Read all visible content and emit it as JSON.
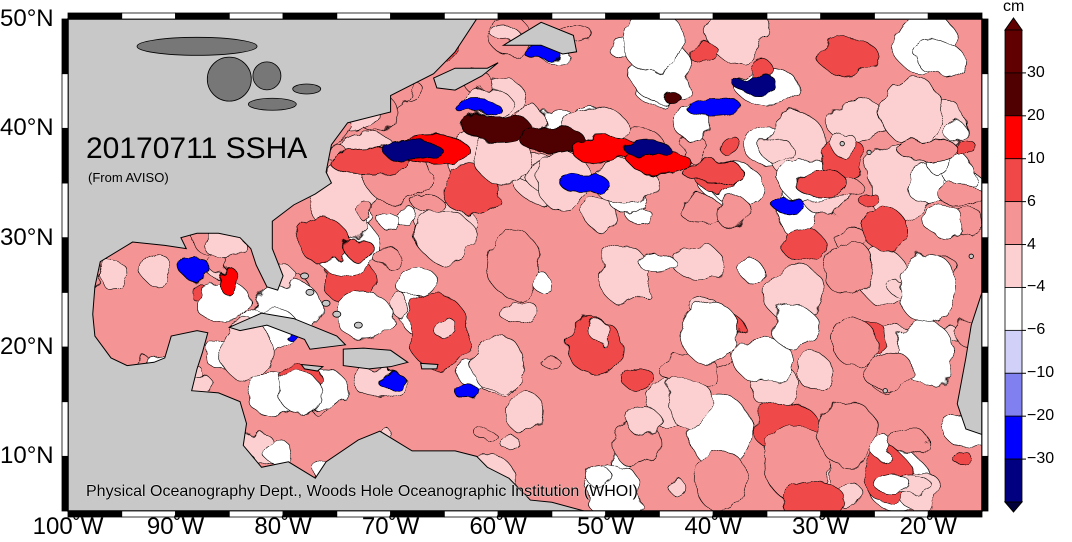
{
  "map": {
    "title": "20170711 SSHA",
    "subtitle": "(From AVISO)",
    "credit": "Physical Oceanography Dept., Woods Hole Oceanographic Institution (WHOI)",
    "extent": {
      "lon_min": -100,
      "lon_max": -15,
      "lat_min": 5,
      "lat_max": 50
    },
    "lat_ticks": [
      {
        "value": 50,
        "label": "50°N"
      },
      {
        "value": 40,
        "label": "40°N"
      },
      {
        "value": 30,
        "label": "30°N"
      },
      {
        "value": 20,
        "label": "20°N"
      },
      {
        "value": 10,
        "label": "10°N"
      }
    ],
    "lon_ticks": [
      {
        "value": -100,
        "label": "100˚W"
      },
      {
        "value": -90,
        "label": "90˚W"
      },
      {
        "value": -80,
        "label": "80˚W"
      },
      {
        "value": -70,
        "label": "70˚W"
      },
      {
        "value": -60,
        "label": "60˚W"
      },
      {
        "value": -50,
        "label": "50˚W"
      },
      {
        "value": -40,
        "label": "40˚W"
      },
      {
        "value": -30,
        "label": "30˚W"
      },
      {
        "value": -20,
        "label": "20˚W"
      }
    ],
    "land_color": "#c8c8c8",
    "lake_color": "#777777"
  },
  "colorbar": {
    "unit": "cm",
    "levels": [
      "30",
      "20",
      "10",
      "6",
      "4",
      "−4",
      "−6",
      "−10",
      "−20",
      "−30"
    ],
    "colors": [
      "#500000",
      "#ff0000",
      "#f04848",
      "#f49494",
      "#fcd0d0",
      "#ffffff",
      "#d0d0f8",
      "#8080f0",
      "#0000ff",
      "#000080",
      "#00003a",
      "#600000"
    ]
  }
}
